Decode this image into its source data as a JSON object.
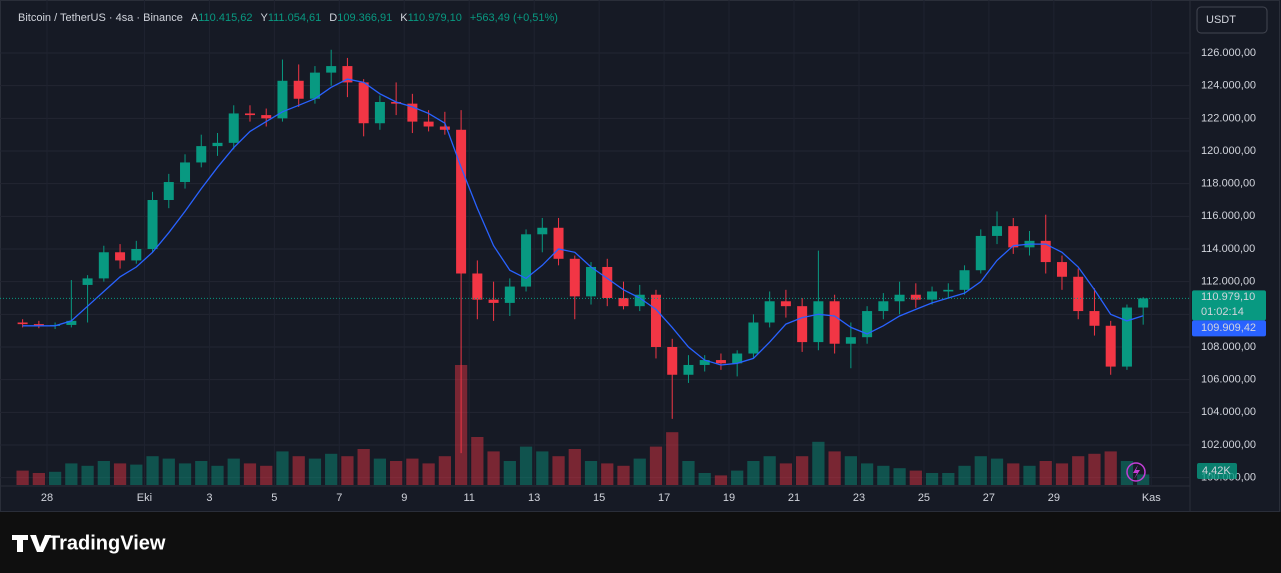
{
  "header": {
    "symbol": "Bitcoin / TetherUS · 4sa · Binance",
    "ohlc": [
      {
        "key": "A",
        "value": "110.415,62"
      },
      {
        "key": "Y",
        "value": "111.054,61"
      },
      {
        "key": "D",
        "value": "109.366,91"
      },
      {
        "key": "K",
        "value": "110.979,10"
      }
    ],
    "change": "+563,49 (+0,51%)",
    "currency": "USDT"
  },
  "footer": {
    "brand": "TradingView"
  },
  "chart_data": {
    "type": "candlestick",
    "categories": [
      null,
      null,
      "28",
      null,
      null,
      null,
      null,
      null,
      "Eki",
      null,
      null,
      null,
      "3",
      null,
      null,
      null,
      "5",
      null,
      null,
      null,
      "7",
      null,
      null,
      null,
      "9",
      null,
      null,
      null,
      "11",
      null,
      null,
      null,
      "13",
      null,
      null,
      null,
      "15",
      null,
      null,
      null,
      "17",
      null,
      null,
      null,
      "19",
      null,
      null,
      null,
      "21",
      null,
      null,
      null,
      "23",
      null,
      null,
      null,
      "25",
      null,
      null,
      null,
      "27",
      null,
      null,
      null,
      "29",
      null,
      null,
      null,
      null,
      null,
      "Kas",
      null
    ],
    "open": [
      109500,
      109400,
      109300,
      109350,
      111800,
      112200,
      113800,
      113300,
      114000,
      117000,
      118100,
      119300,
      120300,
      120500,
      122300,
      122200,
      122000,
      124300,
      123200,
      124800,
      125200,
      124200,
      121700,
      123000,
      122900,
      121800,
      121500,
      121300,
      112500,
      110900,
      110700,
      111700,
      114900,
      115300,
      113400,
      111100,
      112900,
      111000,
      110500,
      111200,
      108000,
      106300,
      106900,
      107200,
      107000,
      107600,
      109500,
      110800,
      110500,
      108300,
      110800,
      108200,
      108600,
      110200,
      110800,
      111200,
      110900,
      111400,
      111500,
      112700,
      114800,
      115400,
      114100,
      114500,
      113200,
      112300,
      110200,
      109300,
      106800,
      110415.62,
      null,
      null
    ],
    "high": [
      109700,
      109600,
      109500,
      112100,
      112400,
      114200,
      114300,
      114500,
      117500,
      118600,
      119800,
      121000,
      121100,
      122800,
      122800,
      122600,
      125600,
      125300,
      125200,
      126200,
      125700,
      124400,
      123400,
      124200,
      123500,
      122500,
      122400,
      122500,
      113300,
      112000,
      112200,
      115200,
      115900,
      115900,
      113600,
      113200,
      113400,
      112000,
      111800,
      111500,
      108500,
      107500,
      107500,
      107600,
      107800,
      110000,
      111400,
      111500,
      111000,
      113900,
      111200,
      109500,
      110500,
      111300,
      112000,
      111900,
      111700,
      111900,
      113000,
      115200,
      116300,
      115900,
      115100,
      116100,
      113600,
      112800,
      111600,
      109600,
      110600,
      111054.61,
      null,
      null
    ],
    "low": [
      109200,
      109150,
      109100,
      109200,
      109500,
      112000,
      112800,
      113100,
      113800,
      116500,
      117700,
      119000,
      119700,
      120100,
      121800,
      121500,
      121800,
      122700,
      122900,
      124000,
      123300,
      120900,
      121300,
      122200,
      121100,
      121200,
      121000,
      101500,
      109700,
      109600,
      109900,
      111400,
      113800,
      113000,
      109700,
      110600,
      110500,
      110300,
      110200,
      107300,
      103600,
      105800,
      106500,
      106600,
      106200,
      107300,
      109200,
      109800,
      107700,
      107800,
      107600,
      106700,
      108200,
      109700,
      110000,
      110400,
      110600,
      111000,
      111200,
      112500,
      114300,
      113700,
      113600,
      112500,
      111500,
      109700,
      108700,
      106300,
      106600,
      109366.91,
      null,
      null
    ],
    "close": [
      109400,
      109300,
      109350,
      109600,
      112200,
      113800,
      113300,
      114000,
      117000,
      118100,
      119300,
      120300,
      120500,
      122300,
      122200,
      122000,
      124300,
      123200,
      124800,
      125200,
      124200,
      121700,
      123000,
      122900,
      121800,
      121500,
      121300,
      112500,
      110900,
      110700,
      111700,
      114900,
      115300,
      113400,
      111100,
      112900,
      111000,
      110500,
      111200,
      108000,
      106300,
      106900,
      107200,
      107000,
      107600,
      109500,
      110800,
      110500,
      108300,
      110800,
      108200,
      108600,
      110200,
      110800,
      111200,
      110900,
      111400,
      111500,
      112700,
      114800,
      115400,
      114100,
      114500,
      113200,
      112300,
      110200,
      109300,
      106800,
      110415.62,
      110979.1,
      null,
      null
    ],
    "volume": [
      6000,
      5000,
      5500,
      9000,
      8000,
      10000,
      9000,
      8500,
      12000,
      11000,
      9000,
      10000,
      8000,
      11000,
      9000,
      8000,
      14000,
      12000,
      11000,
      13000,
      12000,
      15000,
      11000,
      10000,
      11000,
      9000,
      12000,
      50000,
      20000,
      14000,
      10000,
      16000,
      14000,
      12000,
      15000,
      10000,
      9000,
      8000,
      11000,
      16000,
      22000,
      10000,
      5000,
      4000,
      6000,
      10000,
      12000,
      9000,
      12000,
      18000,
      14000,
      12000,
      9000,
      8000,
      7000,
      6000,
      5000,
      5000,
      8000,
      12000,
      11000,
      9000,
      8000,
      10000,
      9000,
      12000,
      13000,
      14000,
      10000,
      4420,
      null,
      null
    ],
    "volume_label": {
      "value": 4420,
      "label": "4,42K"
    },
    "up_color": "#089981",
    "down_color": "#f23645",
    "ma": {
      "color": "#2962ff",
      "values": [
        109300,
        109300,
        109300,
        109600,
        110500,
        111400,
        112300,
        112900,
        113800,
        115000,
        116300,
        117700,
        119000,
        120200,
        121200,
        121800,
        122400,
        122800,
        123200,
        123900,
        124400,
        124200,
        123500,
        123000,
        122700,
        122300,
        121700,
        119000,
        116500,
        114200,
        112700,
        112200,
        113000,
        114000,
        113800,
        112900,
        112200,
        111500,
        111000,
        110300,
        109200,
        108000,
        107200,
        106900,
        107000,
        107300,
        108300,
        109400,
        109800,
        110000,
        109900,
        109200,
        108800,
        109300,
        109900,
        110300,
        110700,
        111000,
        111300,
        112000,
        113300,
        114200,
        114300,
        114300,
        113800,
        112900,
        111500,
        110000,
        109600,
        109909.42,
        null,
        null
      ],
      "last_label": {
        "value": 109909.42,
        "label": "109.909,42"
      }
    },
    "last_price": {
      "value": 110979.1,
      "label": "110.979,10"
    },
    "countdown": "01:02:14",
    "ylim": [
      99550,
      128940
    ],
    "yticks": [
      {
        "value": 100000,
        "label": "100.000,00"
      },
      {
        "value": 102000,
        "label": "102.000,00"
      },
      {
        "value": 104000,
        "label": "104.000,00"
      },
      {
        "value": 106000,
        "label": "106.000,00"
      },
      {
        "value": 108000,
        "label": "108.000,00"
      },
      {
        "value": 110000,
        "label": "110.000,00"
      },
      {
        "value": 112000,
        "label": "112.000,00"
      },
      {
        "value": 114000,
        "label": "114.000,00"
      },
      {
        "value": 116000,
        "label": "116.000,00"
      },
      {
        "value": 118000,
        "label": "118.000,00"
      },
      {
        "value": 120000,
        "label": "120.000,00"
      },
      {
        "value": 122000,
        "label": "122.000,00"
      },
      {
        "value": 124000,
        "label": "124.000,00"
      },
      {
        "value": 126000,
        "label": "126.000,00"
      }
    ],
    "grid": true
  }
}
